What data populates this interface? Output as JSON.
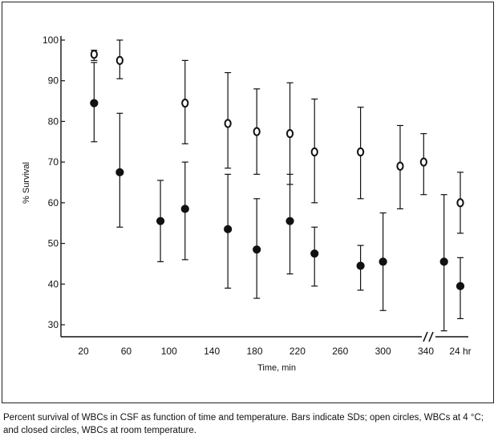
{
  "chart_data": {
    "type": "scatter",
    "title": "",
    "xlabel": "Time, min",
    "ylabel": "% Survival",
    "ylim": [
      27,
      101
    ],
    "yticks": [
      30,
      40,
      50,
      60,
      70,
      80,
      90,
      100
    ],
    "xticks": [
      {
        "x": 20,
        "label": "20"
      },
      {
        "x": 60,
        "label": "60"
      },
      {
        "x": 100,
        "label": "100"
      },
      {
        "x": 140,
        "label": "140"
      },
      {
        "x": 180,
        "label": "180"
      },
      {
        "x": 220,
        "label": "220"
      },
      {
        "x": 260,
        "label": "260"
      },
      {
        "x": 300,
        "label": "300"
      },
      {
        "x": 340,
        "label": "340"
      },
      {
        "x": 400,
        "label": "24 hr"
      }
    ],
    "axis_break": "//",
    "series": [
      {
        "name": "WBCs at 4 °C",
        "marker": "open circle",
        "points": [
          {
            "x": 30,
            "y": 96.5,
            "lo": 95,
            "hi": 97.5
          },
          {
            "x": 54,
            "y": 95,
            "lo": 90.5,
            "hi": 100
          },
          {
            "x": 115,
            "y": 84.5,
            "lo": 74.5,
            "hi": 95
          },
          {
            "x": 155,
            "y": 79.5,
            "lo": 68.5,
            "hi": 92
          },
          {
            "x": 182,
            "y": 77.5,
            "lo": 67,
            "hi": 88
          },
          {
            "x": 213,
            "y": 77,
            "lo": 64.5,
            "hi": 89.5
          },
          {
            "x": 236,
            "y": 72.5,
            "lo": 60,
            "hi": 85.5
          },
          {
            "x": 279,
            "y": 72.5,
            "lo": 61,
            "hi": 83.5
          },
          {
            "x": 316,
            "y": 69,
            "lo": 58.5,
            "hi": 79
          },
          {
            "x": 338,
            "y": 70,
            "lo": 62,
            "hi": 77
          },
          {
            "x": 400,
            "y": 60,
            "lo": 52.5,
            "hi": 67.5
          }
        ]
      },
      {
        "name": "WBCs at room temperature",
        "marker": "closed circle",
        "points": [
          {
            "x": 30,
            "y": 84.5,
            "lo": 75,
            "hi": 94.5
          },
          {
            "x": 54,
            "y": 67.5,
            "lo": 54,
            "hi": 82
          },
          {
            "x": 92,
            "y": 55.5,
            "lo": 45.5,
            "hi": 65.5
          },
          {
            "x": 115,
            "y": 58.5,
            "lo": 46,
            "hi": 70
          },
          {
            "x": 155,
            "y": 53.5,
            "lo": 39,
            "hi": 67
          },
          {
            "x": 182,
            "y": 48.5,
            "lo": 36.5,
            "hi": 61
          },
          {
            "x": 213,
            "y": 55.5,
            "lo": 42.5,
            "hi": 67
          },
          {
            "x": 236,
            "y": 47.5,
            "lo": 39.5,
            "hi": 54
          },
          {
            "x": 279,
            "y": 44.5,
            "lo": 38.5,
            "hi": 49.5
          },
          {
            "x": 300,
            "y": 45.5,
            "lo": 33.5,
            "hi": 57.5
          },
          {
            "x": 357,
            "y": 45.5,
            "lo": 28.5,
            "hi": 62
          },
          {
            "x": 400,
            "y": 39.5,
            "lo": 31.5,
            "hi": 46.5
          }
        ]
      }
    ]
  },
  "caption": "Percent survival of WBCs in CSF as function of time and temperature. Bars indicate SDs; open circles, WBCs at 4 °C; and closed circles, WBCs at room temperature."
}
